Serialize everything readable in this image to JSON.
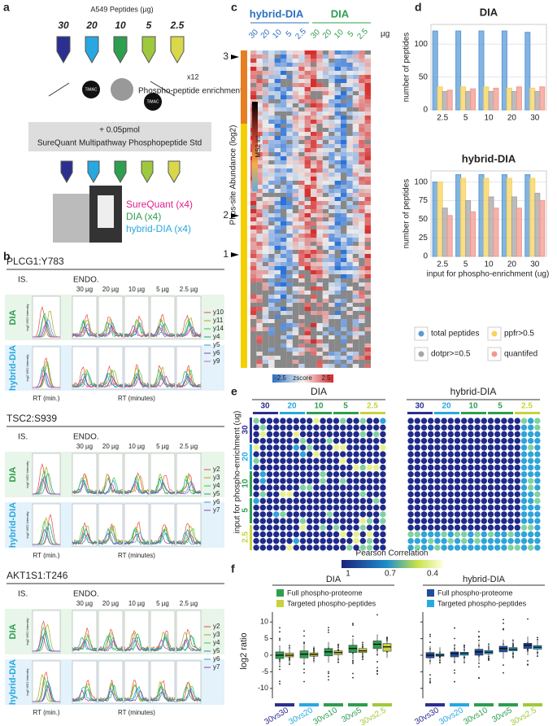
{
  "panel_a": {
    "letter": "a",
    "title": "A549 Peptides (µg)",
    "amounts": [
      "30",
      "20",
      "10",
      "5",
      "2.5"
    ],
    "replicates": "x12",
    "enrichment": "Phospho-peptide enrichment",
    "bead": "TiMAC",
    "spike": "+ 0.05pmol",
    "standard": "SureQuant Multipathway Phosphopeptide Std",
    "methods": [
      "SureQuant (x4)",
      "DIA (x4)",
      "hybrid-DIA (x4)"
    ]
  },
  "panel_b": {
    "letter": "b",
    "is": "IS.",
    "endo": "ENDO.",
    "amounts": [
      "30 µg",
      "20 µg",
      "10 µg",
      "5 µg",
      "2.5 µg"
    ],
    "rows": [
      "DIA",
      "hybrid-DIA"
    ],
    "y_label": "log2 MS2 Intensity",
    "x_label_is": "RT (min.)",
    "x_label_endo": "RT (minutes)",
    "peptides": [
      {
        "name": "PLCG1:Y783",
        "ions": [
          "y10",
          "y11",
          "y14",
          "y4",
          "y5",
          "y6",
          "y9"
        ]
      },
      {
        "name": "TSC2:S939",
        "ions": [
          "y2",
          "y3",
          "y4",
          "y5",
          "y6",
          "y7"
        ]
      },
      {
        "name": "AKT1S1:T246",
        "ions": [
          "y2",
          "y3",
          "y4",
          "y5",
          "y6",
          "y7"
        ]
      }
    ]
  },
  "panel_c": {
    "letter": "c",
    "groups": [
      "hybrid-DIA",
      "DIA"
    ],
    "amounts": [
      "30",
      "20",
      "10",
      "5",
      "2.5"
    ],
    "unit": "µg",
    "y_label": "Phos-site Abundance (log2)",
    "ms2": "MS2 int",
    "markers": [
      "3",
      "2",
      "1"
    ],
    "colorbar": [
      "-2.5",
      "zscore",
      "2.5"
    ]
  },
  "panel_d": {
    "letter": "d",
    "x_label": "input for phospho-enrichment (ug)"
  },
  "panel_e": {
    "letter": "e",
    "groups": [
      "DIA",
      "hybrid-DIA"
    ],
    "amounts": [
      "30",
      "20",
      "10",
      "5",
      "2.5"
    ],
    "amount_colors": [
      "#2b2f8f",
      "#27a8e0",
      "#2e9e4f",
      "#2e9e4f",
      "#c8d23c"
    ],
    "y_label": "input for phospho-enrichment (ug)",
    "colorbar_title": "Pearson Correlation",
    "colorbar_ticks": [
      "1",
      "0.7",
      "0.4"
    ]
  },
  "panel_f": {
    "letter": "f",
    "y_label": "log2 ratio",
    "legend_dia": [
      "Full phospho-proteome",
      "Targeted phospho-peptides"
    ],
    "legend_hybrid": [
      "Full phospho-proteome",
      "Targeted phospho-peptides"
    ],
    "category_colors": [
      "#2b2f8f",
      "#27a8e0",
      "#2e9e4f",
      "#2e9e4f",
      "#9fc93c"
    ]
  },
  "chart_data": [
    {
      "type": "bar",
      "title": "DIA",
      "y_label": "number of peptides",
      "categories": [
        "2.5",
        "5",
        "10",
        "20",
        "30"
      ],
      "ylim": [
        0,
        130
      ],
      "yticks": [
        0,
        50,
        100
      ],
      "series": [
        {
          "name": "total peptides",
          "color": "#5b9bd5",
          "values": [
            120,
            120,
            120,
            120,
            118
          ]
        },
        {
          "name": "ppfr>0.5",
          "color": "#f7d35c",
          "values": [
            35,
            35,
            35,
            33,
            33
          ]
        },
        {
          "name": "dotpr>=0.5",
          "color": "#a6a6a6",
          "values": [
            28,
            28,
            28,
            28,
            28
          ]
        },
        {
          "name": "quantifed",
          "color": "#f2998e",
          "values": [
            30,
            32,
            33,
            35,
            35
          ]
        }
      ]
    },
    {
      "type": "bar",
      "title": "hybrid-DIA",
      "y_label": "number of peptides",
      "categories": [
        "2.5",
        "5",
        "10",
        "20",
        "30"
      ],
      "ylim": [
        0,
        115
      ],
      "yticks": [
        0,
        25,
        50,
        75,
        100
      ],
      "series": [
        {
          "name": "total peptides",
          "color": "#5b9bd5",
          "values": [
            100,
            110,
            110,
            110,
            110
          ]
        },
        {
          "name": "ppfr>0.5",
          "color": "#f7d35c",
          "values": [
            100,
            105,
            105,
            105,
            105
          ]
        },
        {
          "name": "dotpr>=0.5",
          "color": "#a6a6a6",
          "values": [
            65,
            75,
            80,
            80,
            85
          ]
        },
        {
          "name": "quantifed",
          "color": "#f2998e",
          "values": [
            55,
            60,
            65,
            65,
            75
          ]
        }
      ]
    },
    {
      "type": "box",
      "title": "DIA",
      "categories": [
        "30vs30",
        "30vs20",
        "30vs10",
        "30vs5",
        "30vs2.5"
      ],
      "ylim": [
        -13,
        13
      ],
      "yticks": [
        -10,
        -5,
        0,
        5,
        10
      ],
      "series": [
        {
          "name": "Full phospho-proteome",
          "color": "#2e9e4f",
          "q1": [
            -1,
            -0.8,
            -0.2,
            0.8,
            2
          ],
          "median": [
            0,
            0.3,
            1,
            2,
            3.3
          ],
          "q3": [
            1,
            1.3,
            2,
            3,
            4.3
          ]
        },
        {
          "name": "Targeted phospho-peptides",
          "color": "#c8d23c",
          "q1": [
            -0.5,
            -0.3,
            0.2,
            0.8,
            1.2
          ],
          "median": [
            0,
            0.2,
            0.8,
            1.3,
            2.5
          ],
          "q3": [
            0.6,
            0.7,
            1.3,
            2,
            3.5
          ]
        }
      ]
    },
    {
      "type": "box",
      "title": "hybrid-DIA",
      "categories": [
        "30vs30",
        "30vs20",
        "30vs10",
        "30vs5",
        "30vs2.5"
      ],
      "ylim": [
        -13,
        13
      ],
      "yticks": [
        -10,
        -5,
        0,
        5,
        10
      ],
      "series": [
        {
          "name": "Full phospho-proteome",
          "color": "#1f4e9c",
          "q1": [
            -0.8,
            -0.5,
            0,
            1,
            2
          ],
          "median": [
            0,
            0.5,
            1,
            2,
            3
          ],
          "q3": [
            0.8,
            1,
            1.8,
            2.7,
            3.6
          ]
        },
        {
          "name": "Targeted phospho-peptides",
          "color": "#29a9e0",
          "q1": [
            -0.3,
            0,
            0.4,
            1.3,
            1.8
          ],
          "median": [
            0,
            0.5,
            0.9,
            1.8,
            2.4
          ],
          "q3": [
            0.4,
            0.9,
            1.4,
            2.3,
            2.9
          ]
        }
      ]
    }
  ]
}
